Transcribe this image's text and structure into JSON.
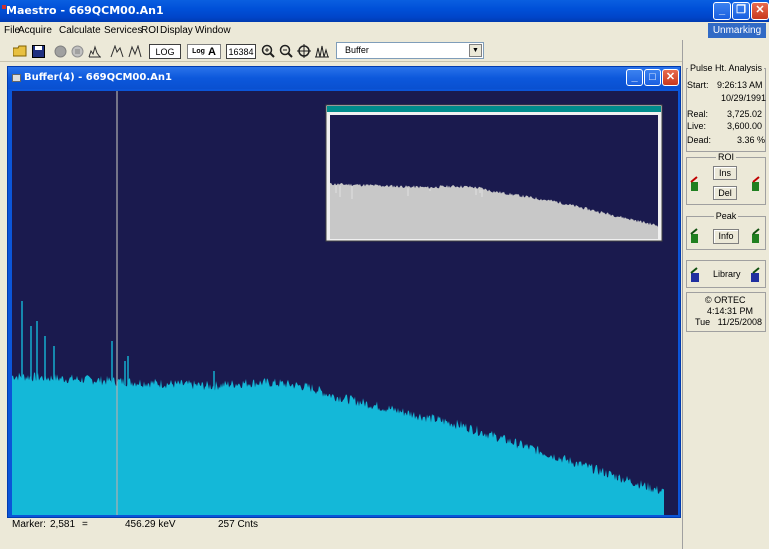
{
  "window": {
    "title": "Maestro - 669QCM00.An1"
  },
  "menu": [
    "File",
    "Acquire",
    "Calculate",
    "Services",
    "ROI",
    "Display",
    "Window"
  ],
  "unmarking": "Unmarking",
  "toolbar": {
    "log_button": "LOG",
    "log_a_prefix": "Log",
    "log_a_letter": "A",
    "channels": "16384",
    "buffer_select": "Buffer"
  },
  "child_window": {
    "title": "Buffer(4) - 669QCM00.An1"
  },
  "status": {
    "marker_label": "Marker:",
    "marker_channel": "2,581",
    "eq": "=",
    "energy": "456.29 keV",
    "counts": "257 Cnts"
  },
  "analysis": {
    "legend": "Pulse Ht. Analysis",
    "start_label": "Start:",
    "start_time": "9:26:13 AM",
    "start_date": "10/29/1991",
    "real_label": "Real:",
    "real_value": "3,725.02",
    "live_label": "Live:",
    "live_value": "3,600.00",
    "dead_label": "Dead:",
    "dead_value": "3.36 %"
  },
  "roi": {
    "legend": "ROI",
    "ins": "Ins",
    "del": "Del"
  },
  "peak": {
    "legend": "Peak",
    "info": "Info"
  },
  "library": {
    "label": "Library"
  },
  "ortec": {
    "brand": "© ORTEC",
    "time": "4:14:31 PM",
    "date": "Tue   11/25/2008"
  },
  "colors": {
    "spectrum": "#14b8d8",
    "plot_bg": "#1a1a4e",
    "inset_fill": "#c8c8c8",
    "inset_title": "#008b8b"
  }
}
